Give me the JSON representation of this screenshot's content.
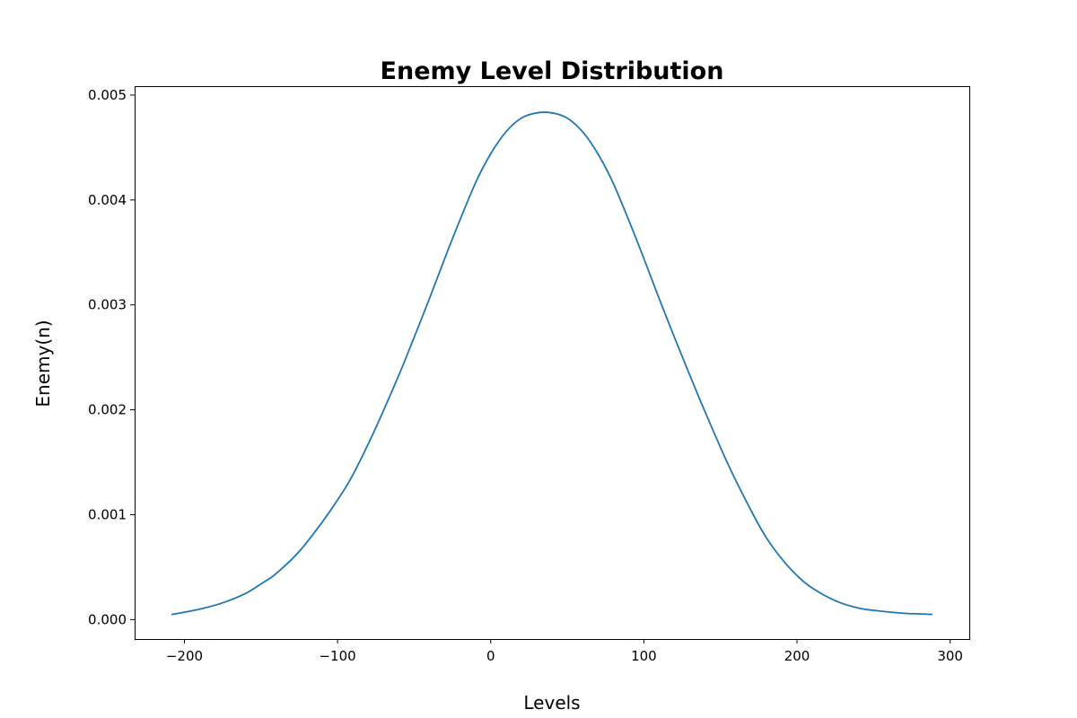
{
  "chart_data": {
    "type": "line",
    "title": "Enemy Level Distribution",
    "xlabel": "Levels",
    "ylabel": "Enemy(n)",
    "xlim": [
      -232.5,
      312.5
    ],
    "ylim": [
      -0.000185,
      0.005085
    ],
    "x_ticks": [
      -200,
      -100,
      0,
      100,
      200,
      300
    ],
    "x_tick_labels": [
      "−200",
      "−100",
      "0",
      "100",
      "200",
      "300"
    ],
    "y_ticks": [
      0.0,
      0.001,
      0.002,
      0.003,
      0.004,
      0.005
    ],
    "y_tick_labels": [
      "0.000",
      "0.001",
      "0.002",
      "0.003",
      "0.004",
      "0.005"
    ],
    "grid": false,
    "series": [
      {
        "color": "#1f77b4",
        "x": [
          -208,
          -190,
          -175,
          -160,
          -150,
          -140,
          -125,
          -110,
          -100,
          -90,
          -75,
          -60,
          -50,
          -40,
          -25,
          -10,
          0,
          10,
          20,
          30,
          40,
          50,
          60,
          70,
          80,
          95,
          110,
          120,
          130,
          140,
          155,
          170,
          180,
          190,
          200,
          210,
          225,
          240,
          255,
          270,
          288
        ],
        "y": [
          5e-05,
          0.0001,
          0.00016,
          0.00025,
          0.00034,
          0.00044,
          0.00065,
          0.00093,
          0.00114,
          0.00138,
          0.00183,
          0.00233,
          0.00269,
          0.00306,
          0.00363,
          0.00416,
          0.00444,
          0.00465,
          0.00478,
          0.00483,
          0.00483,
          0.00478,
          0.00465,
          0.00444,
          0.00416,
          0.00363,
          0.00306,
          0.00269,
          0.00233,
          0.00198,
          0.00148,
          0.00104,
          0.00078,
          0.00058,
          0.00042,
          0.0003,
          0.00018,
          0.00011,
          8e-05,
          6e-05,
          5e-05
        ]
      }
    ]
  }
}
